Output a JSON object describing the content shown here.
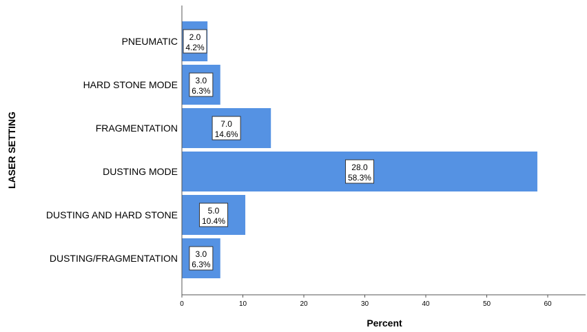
{
  "chart_data": {
    "type": "bar",
    "orientation": "horizontal",
    "xlabel": "Percent",
    "ylabel": "LASER SETTING",
    "xlim": [
      0,
      66
    ],
    "xticks": [
      0,
      10,
      20,
      30,
      40,
      50,
      60
    ],
    "xtick_labels": [
      "0",
      "10",
      "20",
      "30",
      "40",
      "50",
      "60"
    ],
    "grid": false,
    "categories": [
      "PNEUMATIC",
      "HARD STONE MODE",
      "FRAGMENTATION",
      "DUSTING MODE",
      "DUSTING AND HARD STONE",
      "DUSTING/FRAGMENTATION"
    ],
    "values": [
      4.2,
      6.3,
      14.6,
      58.3,
      10.4,
      6.3
    ],
    "counts": [
      2.0,
      3.0,
      7.0,
      28.0,
      5.0,
      3.0
    ],
    "data_labels": [
      {
        "count": "2.0",
        "percent": "4.2%"
      },
      {
        "count": "3.0",
        "percent": "6.3%"
      },
      {
        "count": "7.0",
        "percent": "14.6%"
      },
      {
        "count": "28.0",
        "percent": "58.3%"
      },
      {
        "count": "5.0",
        "percent": "10.4%"
      },
      {
        "count": "3.0",
        "percent": "6.3%"
      }
    ],
    "bar_color": "#5592e3"
  }
}
